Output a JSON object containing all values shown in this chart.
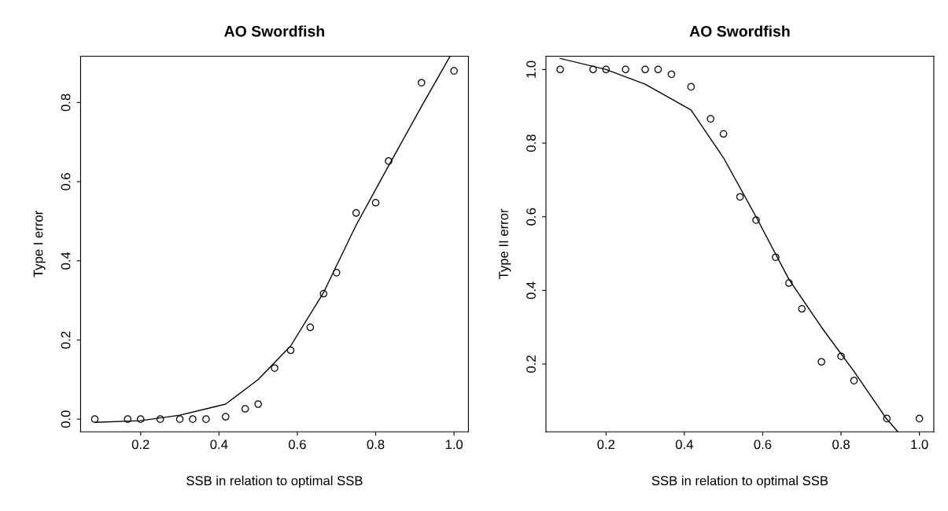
{
  "chart_data": [
    {
      "type": "scatter",
      "title": "AO Swordfish",
      "xlabel": "SSB in relation to optimal SSB",
      "ylabel": "Type I error",
      "xlim": [
        0.0467,
        1.0367
      ],
      "ylim": [
        -0.032,
        0.917
      ],
      "xticks": [
        0.2,
        0.4,
        0.6,
        0.8,
        {
          "value": 1.0,
          "label": "1.0"
        }
      ],
      "yticks": [
        {
          "value": 0.0,
          "label": "0.0"
        },
        0.2,
        0.4,
        0.6,
        0.8
      ],
      "grid": false,
      "legend": false,
      "series": [
        {
          "type": "scatter",
          "color": "#000000",
          "marker": "circle",
          "x": [
            0.083,
            0.167,
            0.2,
            0.25,
            0.3,
            0.333,
            0.367,
            0.417,
            0.467,
            0.5,
            0.542,
            0.583,
            0.633,
            0.667,
            0.7,
            0.75,
            0.8,
            0.833,
            0.917,
            1.0
          ],
          "values": [
            0,
            0,
            0,
            0,
            0,
            0,
            0,
            0.006,
            0.026,
            0.038,
            0.129,
            0.174,
            0.232,
            0.317,
            0.37,
            0.521,
            0.547,
            0.652,
            0.85,
            0.88
          ]
        },
        {
          "type": "line",
          "color": "#000000",
          "marker": "none",
          "line_style": "solid",
          "x": [
            0.083,
            0.2,
            0.3,
            0.417,
            0.5,
            0.583,
            0.667,
            0.75,
            0.833,
            0.917,
            0.99
          ],
          "values": [
            -0.008,
            -0.004,
            0.01,
            0.038,
            0.1,
            0.185,
            0.32,
            0.49,
            0.64,
            0.79,
            0.917
          ]
        }
      ]
    },
    {
      "type": "scatter",
      "title": "AO Swordfish",
      "xlabel": "SSB in relation to optimal SSB",
      "ylabel": "Type II error",
      "xlim": [
        0.0467,
        1.0367
      ],
      "ylim": [
        0.016,
        1.036
      ],
      "xticks": [
        0.2,
        0.4,
        0.6,
        0.8,
        {
          "value": 1.0,
          "label": "1.0"
        }
      ],
      "yticks": [
        0.2,
        0.4,
        0.6,
        0.8,
        {
          "value": 1.0,
          "label": "1.0"
        }
      ],
      "grid": false,
      "legend": false,
      "series": [
        {
          "type": "scatter",
          "color": "#000000",
          "marker": "circle",
          "x": [
            0.083,
            0.167,
            0.2,
            0.25,
            0.3,
            0.333,
            0.367,
            0.417,
            0.467,
            0.5,
            0.542,
            0.583,
            0.633,
            0.667,
            0.7,
            0.75,
            0.8,
            0.833,
            0.917,
            1.0
          ],
          "values": [
            1.0,
            1.0,
            1.0,
            1.0,
            1.0,
            1.0,
            0.987,
            0.953,
            0.866,
            0.825,
            0.654,
            0.591,
            0.49,
            0.42,
            0.35,
            0.206,
            0.221,
            0.155,
            0.052,
            0.052
          ]
        },
        {
          "type": "line",
          "color": "#000000",
          "marker": "none",
          "line_style": "solid",
          "x": [
            0.083,
            0.2,
            0.3,
            0.417,
            0.5,
            0.583,
            0.667,
            0.75,
            0.833,
            0.917,
            0.945
          ],
          "values": [
            1.03,
            1.0,
            0.96,
            0.89,
            0.76,
            0.6,
            0.43,
            0.3,
            0.18,
            0.05,
            0.016
          ]
        }
      ]
    }
  ]
}
